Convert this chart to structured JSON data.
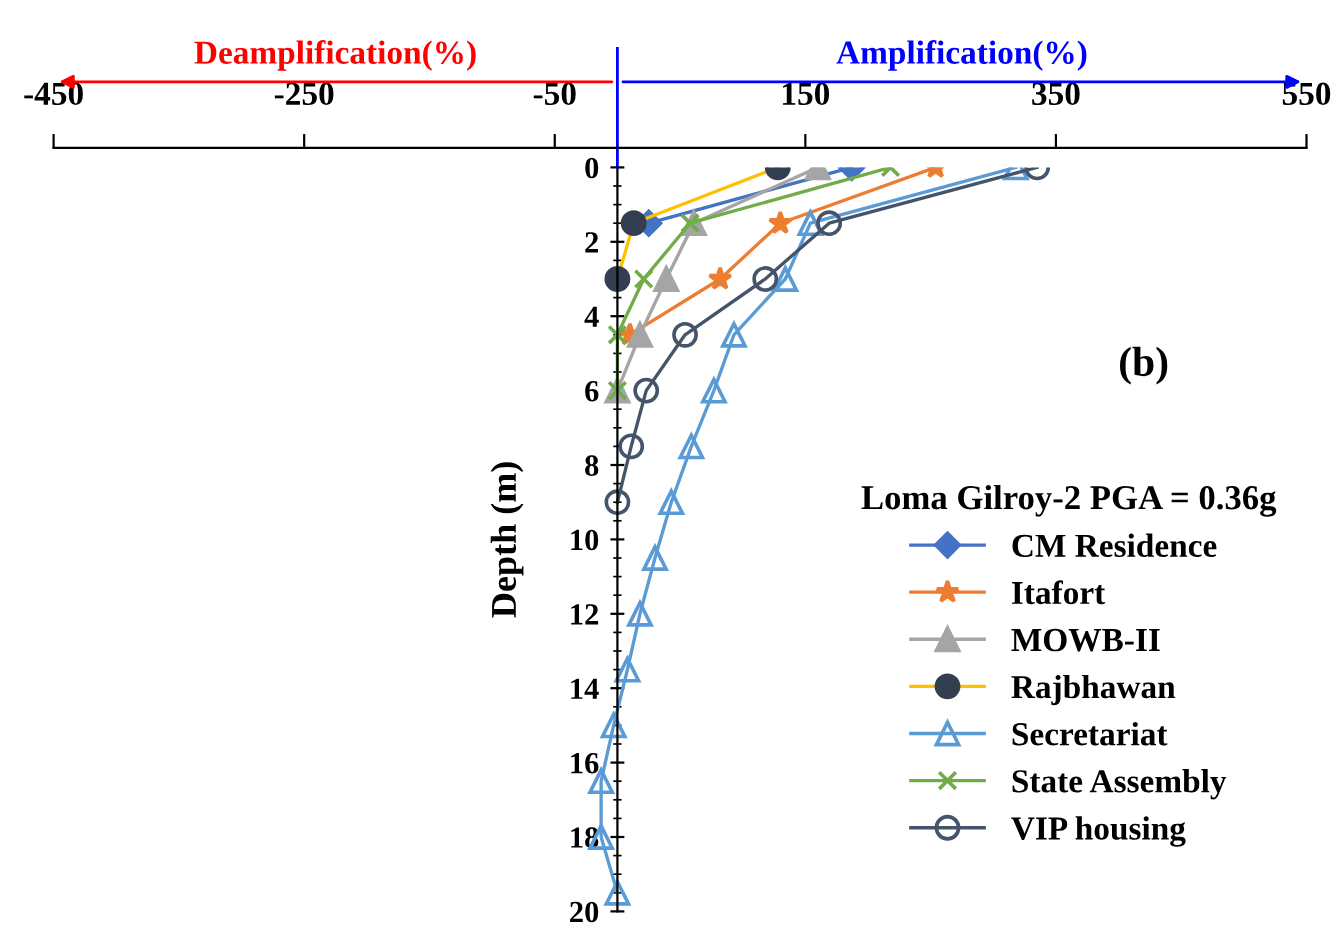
{
  "chart_data": {
    "type": "line",
    "ylabel": "Depth (m)",
    "legend_title": "Loma Gilroy-2 PGA = 0.36g",
    "annotations": [
      "Deamplification(%)",
      "Amplification(%)",
      "(b)"
    ],
    "xlim": [
      -450,
      550
    ],
    "xticks": [
      -450,
      -250,
      -50,
      150,
      350,
      550
    ],
    "ylim": [
      20,
      0
    ],
    "yticks": [
      0,
      2,
      4,
      6,
      8,
      10,
      12,
      14,
      16,
      18,
      20
    ],
    "legend": "right",
    "grid": false,
    "series": [
      {
        "name": "CM Residence",
        "color": "#4472c4",
        "marker": "diamond",
        "x": [
          187,
          25
        ],
        "values": [
          0,
          1.5
        ]
      },
      {
        "name": "Itafort",
        "color": "#ed7d31",
        "marker": "star",
        "x": [
          254,
          130,
          82,
          10
        ],
        "values": [
          0,
          1.5,
          3,
          4.5
        ]
      },
      {
        "name": "MOWB-II",
        "color": "#a5a5a5",
        "marker": "triangle",
        "x": [
          160,
          61,
          39,
          18,
          0
        ],
        "values": [
          0,
          1.5,
          3,
          4.5,
          6
        ]
      },
      {
        "name": "Rajbhawan",
        "color": "#ffc000",
        "marker": "circle",
        "x": [
          128,
          13,
          0
        ],
        "values": [
          0,
          1.5,
          3
        ]
      },
      {
        "name": "Secretariat",
        "color": "#5b9bd5",
        "marker": "triangle",
        "x": [
          318,
          154,
          134,
          93,
          77,
          59,
          43,
          30,
          18,
          8,
          -3,
          -13,
          -13,
          0
        ],
        "values": [
          0,
          1.5,
          3,
          4.5,
          6,
          7.5,
          9,
          10.5,
          12,
          13.5,
          15,
          16.5,
          18,
          19.5
        ]
      },
      {
        "name": "State Assembly",
        "color": "#70ad47",
        "marker": "cross",
        "x": [
          218,
          58,
          21,
          0,
          0
        ],
        "values": [
          0,
          1.5,
          3,
          4.5,
          6
        ]
      },
      {
        "name": "VIP housing",
        "color": "#44546a",
        "marker": "circle",
        "x": [
          335,
          169,
          118,
          54,
          23,
          11,
          0
        ],
        "values": [
          0,
          1.5,
          3,
          4.5,
          6,
          7.5,
          9
        ]
      }
    ]
  }
}
